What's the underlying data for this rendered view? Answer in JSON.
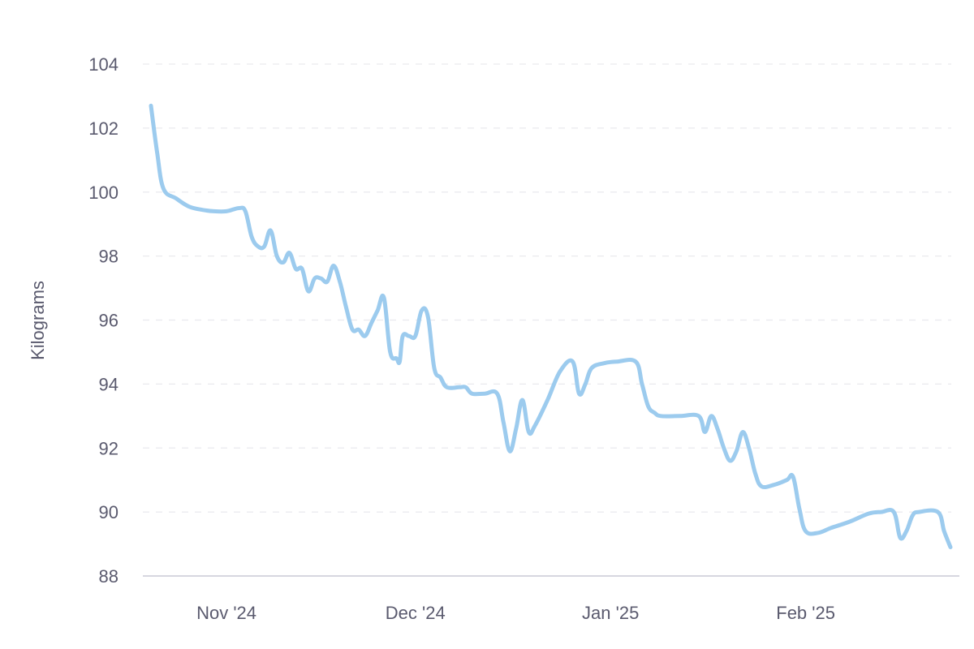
{
  "chart_data": {
    "type": "line",
    "ylabel": "Kilograms",
    "xlabel": "",
    "ylim": [
      88,
      104
    ],
    "y_ticks": [
      88,
      90,
      92,
      94,
      96,
      98,
      100,
      102,
      104
    ],
    "x_ticks": [
      {
        "label": "Nov '24",
        "date": "2024-11-01"
      },
      {
        "label": "Dec '24",
        "date": "2024-12-01"
      },
      {
        "label": "Jan '25",
        "date": "2025-01-01"
      },
      {
        "label": "Feb '25",
        "date": "2025-02-01"
      }
    ],
    "xlim": [
      "2024-10-20",
      "2025-02-24"
    ],
    "grid": true,
    "colors": {
      "line": "#9ccbee",
      "grid": "#e9e9ee",
      "axis": "#c9c9d6",
      "text": "#5a5a6e"
    },
    "series": [
      {
        "points": [
          [
            "2024-10-20",
            102.7
          ],
          [
            "2024-10-21",
            101.2
          ],
          [
            "2024-10-22",
            100.1
          ],
          [
            "2024-10-24",
            99.8
          ],
          [
            "2024-10-26",
            99.55
          ],
          [
            "2024-10-28",
            99.45
          ],
          [
            "2024-10-30",
            99.4
          ],
          [
            "2024-11-01",
            99.4
          ],
          [
            "2024-11-03",
            99.5
          ],
          [
            "2024-11-04",
            99.4
          ],
          [
            "2024-11-05",
            98.6
          ],
          [
            "2024-11-06",
            98.3
          ],
          [
            "2024-11-07",
            98.3
          ],
          [
            "2024-11-08",
            98.8
          ],
          [
            "2024-11-09",
            98.0
          ],
          [
            "2024-11-10",
            97.8
          ],
          [
            "2024-11-11",
            98.1
          ],
          [
            "2024-11-12",
            97.6
          ],
          [
            "2024-11-13",
            97.6
          ],
          [
            "2024-11-14",
            96.9
          ],
          [
            "2024-11-15",
            97.3
          ],
          [
            "2024-11-16",
            97.3
          ],
          [
            "2024-11-17",
            97.2
          ],
          [
            "2024-11-18",
            97.7
          ],
          [
            "2024-11-19",
            97.2
          ],
          [
            "2024-11-20",
            96.4
          ],
          [
            "2024-11-21",
            95.7
          ],
          [
            "2024-11-22",
            95.7
          ],
          [
            "2024-11-23",
            95.5
          ],
          [
            "2024-11-24",
            95.9
          ],
          [
            "2024-11-25",
            96.3
          ],
          [
            "2024-11-26",
            96.7
          ],
          [
            "2024-11-27",
            95.0
          ],
          [
            "2024-11-28",
            94.8
          ],
          [
            "2024-11-28.5",
            94.7
          ],
          [
            "2024-11-29",
            95.5
          ],
          [
            "2024-11-30",
            95.5
          ],
          [
            "2024-12-01",
            95.5
          ],
          [
            "2024-12-02",
            96.3
          ],
          [
            "2024-12-03",
            96.1
          ],
          [
            "2024-12-04",
            94.5
          ],
          [
            "2024-12-05",
            94.2
          ],
          [
            "2024-12-06",
            93.9
          ],
          [
            "2024-12-08",
            93.9
          ],
          [
            "2024-12-09",
            93.9
          ],
          [
            "2024-12-10",
            93.7
          ],
          [
            "2024-12-12",
            93.7
          ],
          [
            "2024-12-14",
            93.7
          ],
          [
            "2024-12-15",
            92.8
          ],
          [
            "2024-12-16",
            91.9
          ],
          [
            "2024-12-17",
            92.6
          ],
          [
            "2024-12-18",
            93.5
          ],
          [
            "2024-12-19",
            92.5
          ],
          [
            "2024-12-20",
            92.7
          ],
          [
            "2024-12-22",
            93.5
          ],
          [
            "2024-12-24",
            94.4
          ],
          [
            "2024-12-26",
            94.7
          ],
          [
            "2024-12-27",
            93.7
          ],
          [
            "2024-12-28",
            94.0
          ],
          [
            "2024-12-29",
            94.5
          ],
          [
            "2024-12-31",
            94.65
          ],
          [
            "2025-01-02",
            94.7
          ],
          [
            "2025-01-05",
            94.7
          ],
          [
            "2025-01-06",
            94.0
          ],
          [
            "2025-01-07",
            93.3
          ],
          [
            "2025-01-08",
            93.1
          ],
          [
            "2025-01-09",
            93.0
          ],
          [
            "2025-01-12",
            93.0
          ],
          [
            "2025-01-15",
            93.0
          ],
          [
            "2025-01-16",
            92.5
          ],
          [
            "2025-01-17",
            93.0
          ],
          [
            "2025-01-18",
            92.6
          ],
          [
            "2025-01-19",
            92.0
          ],
          [
            "2025-01-20",
            91.6
          ],
          [
            "2025-01-21",
            91.9
          ],
          [
            "2025-01-22",
            92.5
          ],
          [
            "2025-01-23",
            92.0
          ],
          [
            "2025-01-24",
            91.2
          ],
          [
            "2025-01-25",
            90.8
          ],
          [
            "2025-01-27",
            90.85
          ],
          [
            "2025-01-29",
            91.0
          ],
          [
            "2025-01-30",
            91.1
          ],
          [
            "2025-01-31",
            90.1
          ],
          [
            "2025-02-01",
            89.4
          ],
          [
            "2025-02-03",
            89.35
          ],
          [
            "2025-02-05",
            89.5
          ],
          [
            "2025-02-08",
            89.7
          ],
          [
            "2025-02-11",
            89.95
          ],
          [
            "2025-02-13",
            90.0
          ],
          [
            "2025-02-15",
            90.0
          ],
          [
            "2025-02-16",
            89.2
          ],
          [
            "2025-02-17",
            89.4
          ],
          [
            "2025-02-18",
            89.9
          ],
          [
            "2025-02-19",
            90.0
          ],
          [
            "2025-02-22",
            90.0
          ],
          [
            "2025-02-23",
            89.4
          ],
          [
            "2025-02-24",
            88.9
          ]
        ]
      }
    ]
  }
}
